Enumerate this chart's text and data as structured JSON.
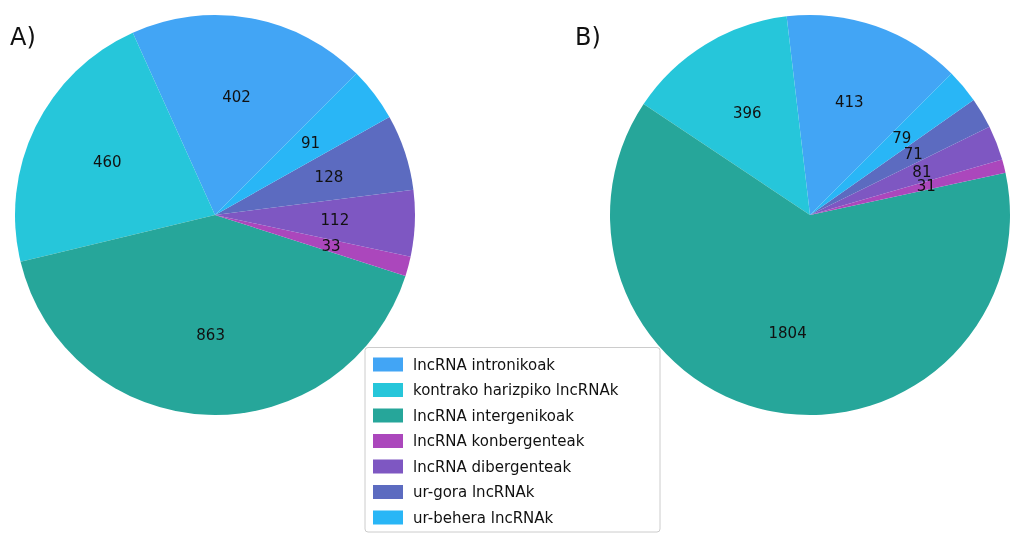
{
  "chart_data": [
    {
      "type": "pie",
      "title": "A)",
      "categories": [
        "lncRNA intronikoak",
        "kontrako harizpiko lncRNAk",
        "lncRNA intergenikoak",
        "lncRNA konbergenteak",
        "lncRNA dibergenteak",
        "ur-gora lncRNAk",
        "ur-behera lncRNAk"
      ],
      "values": [
        402,
        460,
        863,
        33,
        112,
        128,
        91
      ],
      "colors": [
        "#42a5f5",
        "#26c6da",
        "#26a69a",
        "#ab47bc",
        "#7e57c2",
        "#5c6bc0",
        "#29b6f6"
      ],
      "data_labels": true,
      "legend": "bottom"
    },
    {
      "type": "pie",
      "title": "B)",
      "categories": [
        null,
        null,
        null,
        null,
        null,
        null,
        null
      ],
      "values": [
        413,
        396,
        1804,
        31,
        81,
        71,
        79
      ],
      "colors": [
        "#42a5f5",
        "#26c6da",
        "#26a69a",
        "#ab47bc",
        "#7e57c2",
        "#5c6bc0",
        "#29b6f6"
      ],
      "data_labels": true
    }
  ]
}
